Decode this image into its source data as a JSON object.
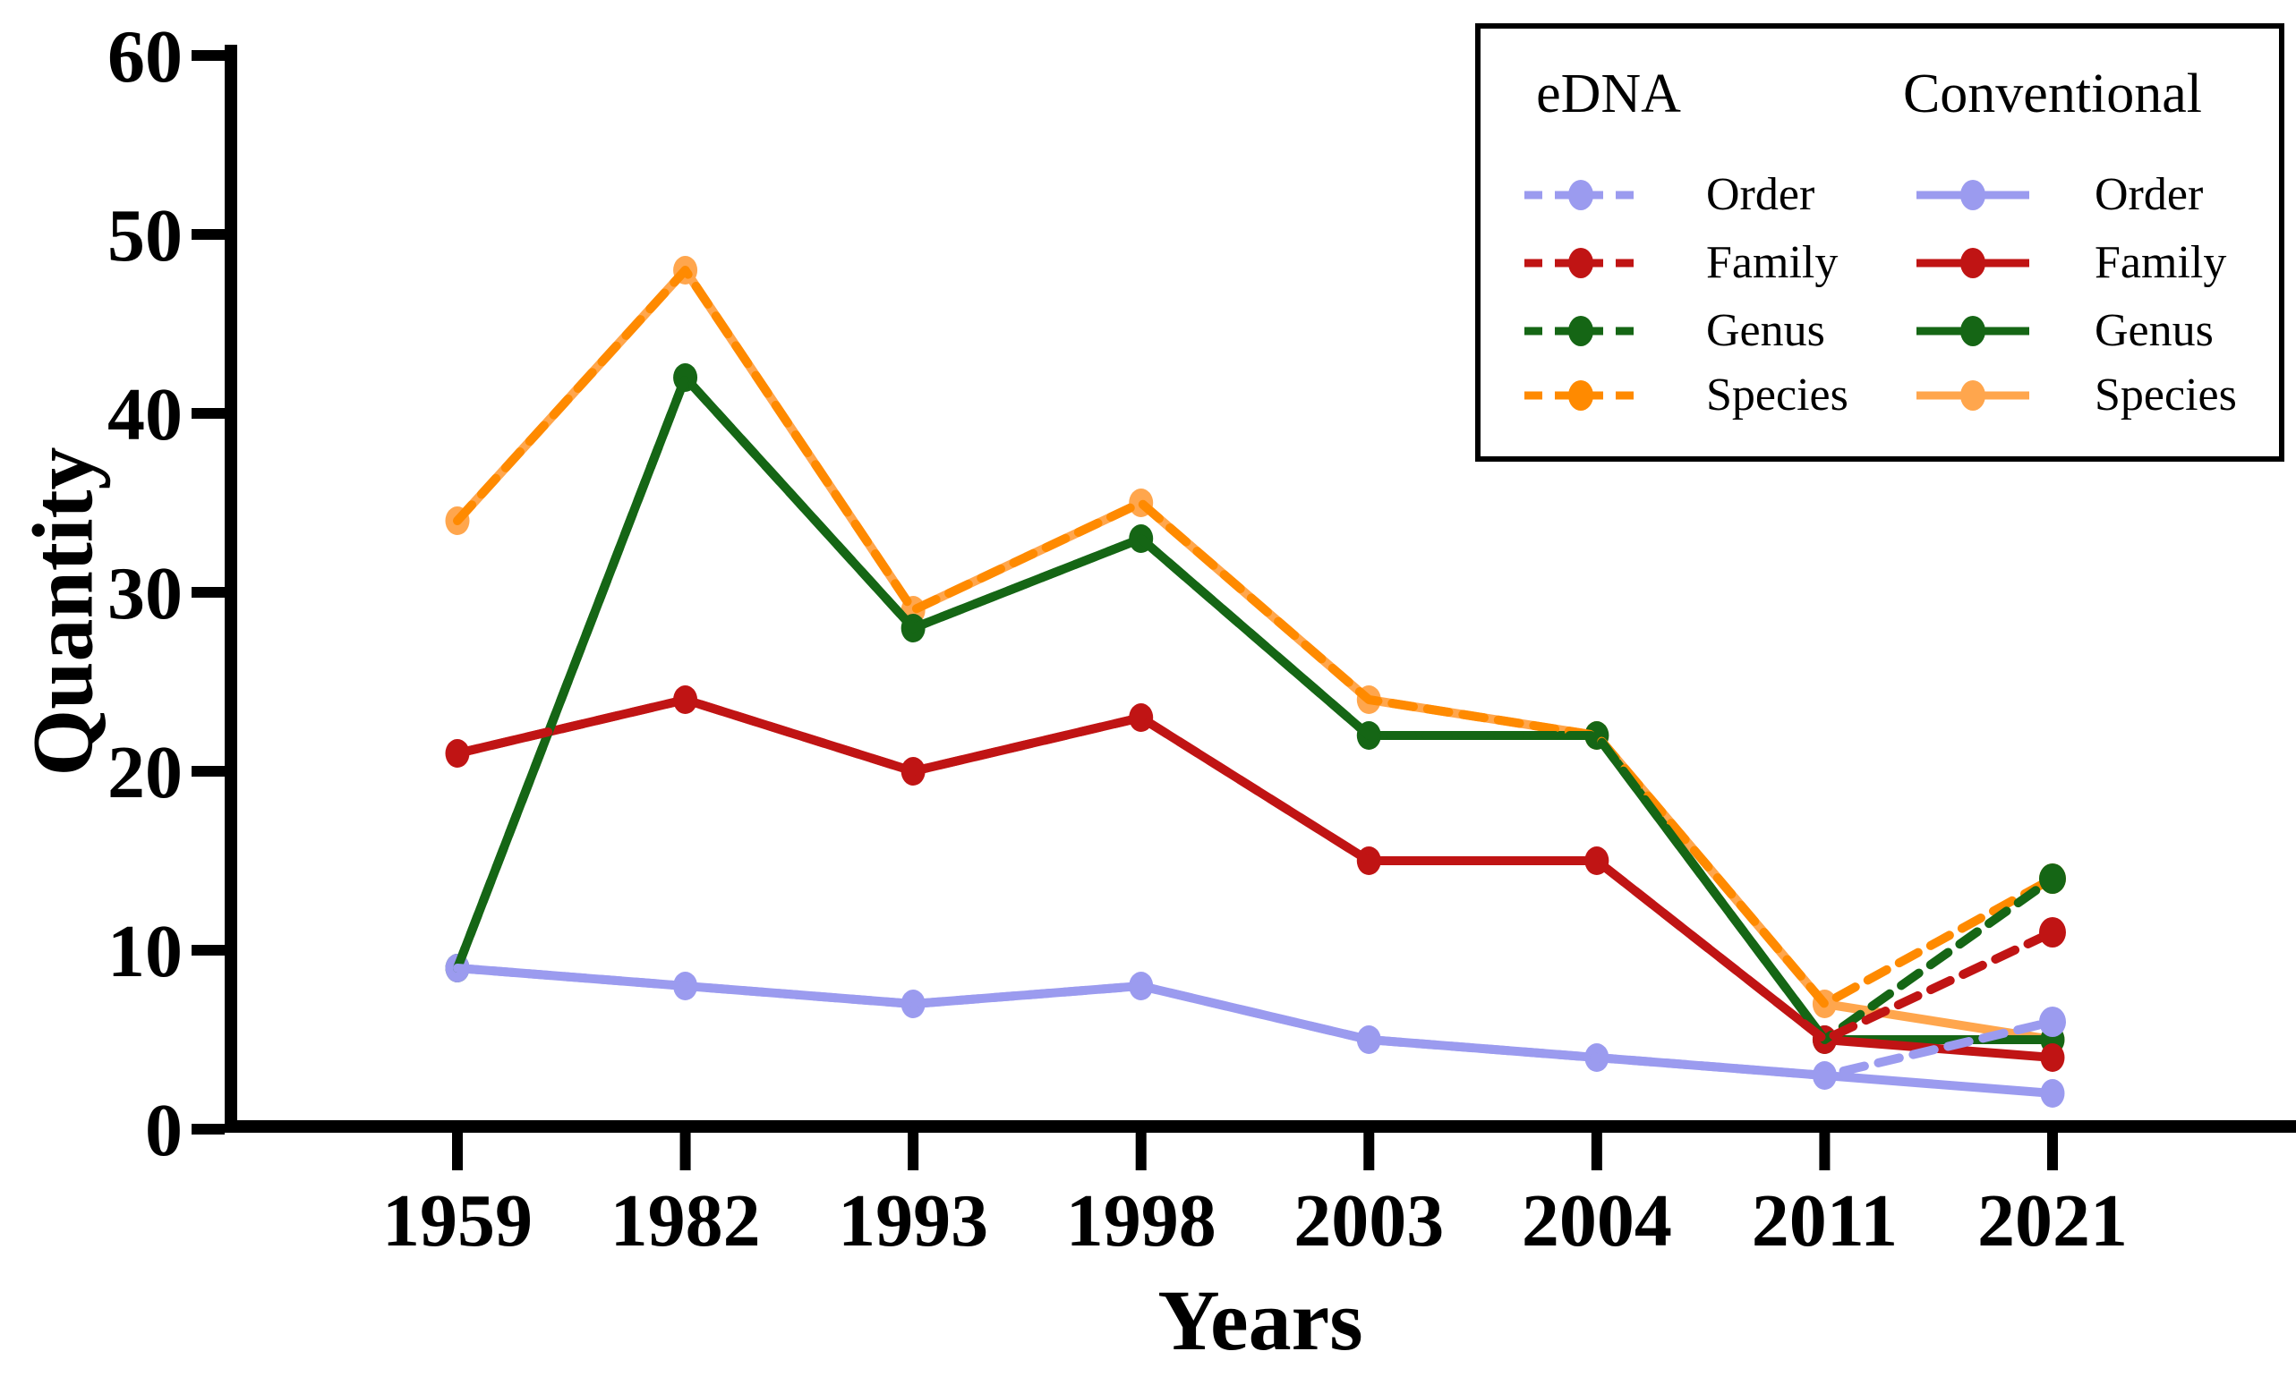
{
  "chart_data": {
    "type": "line",
    "title": "",
    "xlabel": "Years",
    "ylabel": "Quantity",
    "categories": [
      "1959",
      "1982",
      "1993",
      "1998",
      "2003",
      "2004",
      "2011",
      "2021"
    ],
    "ylim": [
      0,
      60
    ],
    "yticks": [
      0,
      10,
      20,
      30,
      40,
      50,
      60
    ],
    "grid": false,
    "legend": {
      "position": "top-right",
      "groups": [
        "eDNA",
        "Conventional"
      ],
      "items": [
        "Order",
        "Family",
        "Genus",
        "Species"
      ]
    },
    "colors": {
      "order": "#9b9bef",
      "family": "#c01414",
      "genus": "#156615",
      "species_edna": "#ff8a00",
      "species_conventional": "#ffa64d",
      "axis": "#000000"
    },
    "series": [
      {
        "group": "eDNA",
        "name": "Order",
        "style": "dashed",
        "color_key": "order",
        "values": [
          9,
          8,
          7,
          8,
          5,
          4,
          3,
          6
        ]
      },
      {
        "group": "eDNA",
        "name": "Family",
        "style": "dashed",
        "color_key": "family",
        "values": [
          21,
          24,
          20,
          23,
          15,
          15,
          5,
          11
        ]
      },
      {
        "group": "eDNA",
        "name": "Genus",
        "style": "dashed",
        "color_key": "genus",
        "values": [
          9,
          42,
          28,
          33,
          22,
          22,
          5,
          14
        ]
      },
      {
        "group": "eDNA",
        "name": "Species",
        "style": "dashed",
        "color_key": "species_edna",
        "values": [
          34,
          48,
          29,
          35,
          24,
          22,
          7,
          14
        ]
      },
      {
        "group": "Conventional",
        "name": "Order",
        "style": "solid",
        "color_key": "order",
        "values": [
          9,
          8,
          7,
          8,
          5,
          4,
          3,
          2
        ]
      },
      {
        "group": "Conventional",
        "name": "Family",
        "style": "solid",
        "color_key": "family",
        "values": [
          21,
          24,
          20,
          23,
          15,
          15,
          5,
          4
        ]
      },
      {
        "group": "Conventional",
        "name": "Genus",
        "style": "solid",
        "color_key": "genus",
        "values": [
          9,
          42,
          28,
          33,
          22,
          22,
          5,
          5
        ]
      },
      {
        "group": "Conventional",
        "name": "Species",
        "style": "solid",
        "color_key": "species_conventional",
        "values": [
          34,
          48,
          29,
          35,
          24,
          22,
          7,
          5
        ]
      }
    ]
  }
}
